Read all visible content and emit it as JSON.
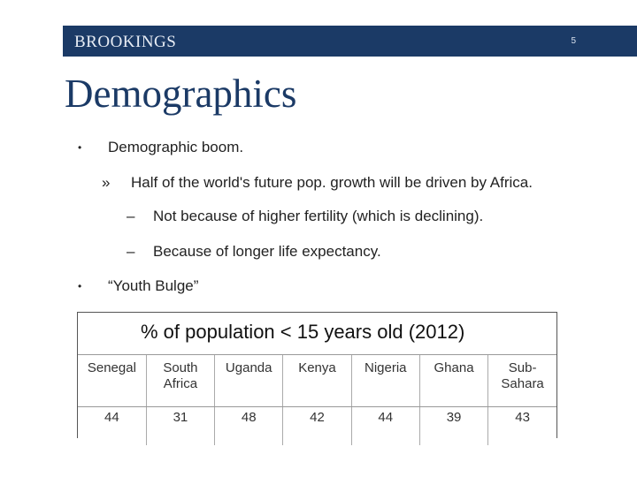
{
  "header": {
    "brand": "BROOKINGS",
    "page_number": "5"
  },
  "slide": {
    "title": "Demographics",
    "bullets": [
      {
        "marker": "•",
        "text": "Demographic boom."
      },
      {
        "marker": "»",
        "text": "Half of the world's future pop. growth will be driven by Africa."
      },
      {
        "marker": "–",
        "text": "Not because of higher fertility (which is declining)."
      },
      {
        "marker": "–",
        "text": "Because of longer life expectancy."
      },
      {
        "marker": "•",
        "text": "“Youth Bulge”"
      }
    ]
  },
  "table": {
    "title": "% of population < 15 years old (2012)",
    "columns": [
      "Senegal",
      "South Africa",
      "Uganda",
      "Kenya",
      "Nigeria",
      "Ghana",
      "Sub-Sahara"
    ],
    "values": [
      "44",
      "31",
      "48",
      "42",
      "44",
      "39",
      "43"
    ]
  }
}
